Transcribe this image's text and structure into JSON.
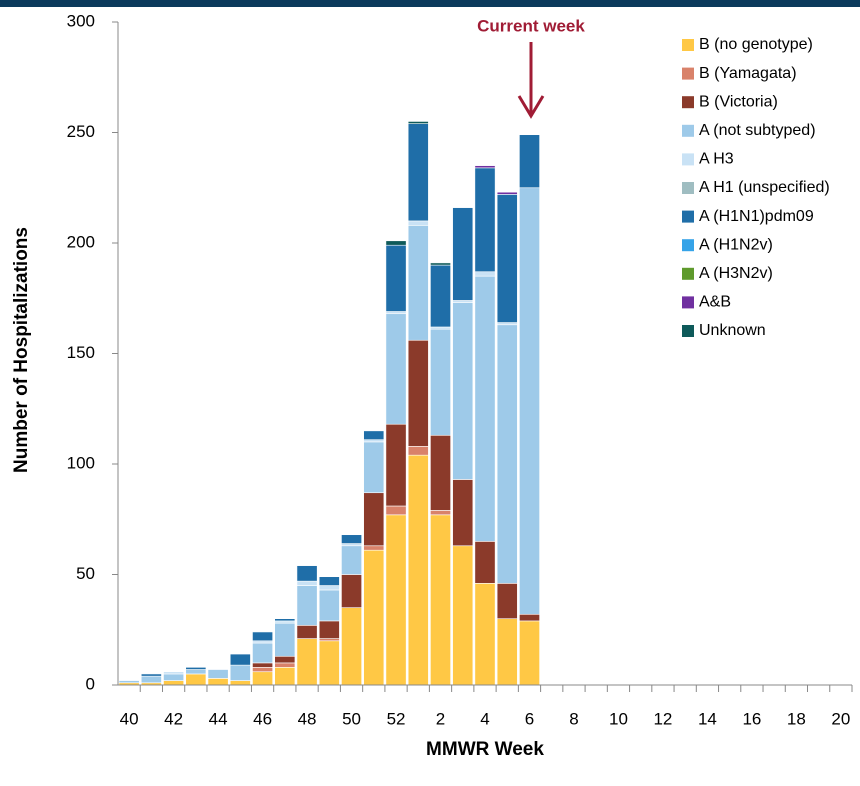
{
  "chart_data": {
    "type": "stacked_bar",
    "x_label": "MMWR Week",
    "y_label": "Number of Hospitalizations",
    "annotation": "Current week",
    "categories": [
      40,
      null,
      42,
      null,
      44,
      null,
      46,
      null,
      48,
      null,
      50,
      null,
      52,
      null,
      2,
      null,
      4,
      null,
      6,
      null,
      8,
      null,
      10,
      null,
      12,
      null,
      14,
      null,
      16,
      null,
      18,
      null,
      20
    ],
    "ylim": [
      0,
      300
    ],
    "yticks": [
      0,
      50,
      100,
      150,
      200,
      250,
      300
    ],
    "series": [
      {
        "name": "B (no genotype)",
        "color": "#ffc845",
        "values": [
          1,
          1,
          2,
          5,
          3,
          2,
          6,
          8,
          21,
          20,
          35,
          61,
          77,
          104,
          77,
          63,
          46,
          30,
          29,
          null,
          null,
          null,
          null,
          null,
          null,
          null,
          null,
          null,
          null,
          null,
          null,
          null,
          null
        ]
      },
      {
        "name": "B (Yamagata)",
        "color": "#d9826a",
        "values": [
          0,
          0,
          0,
          0,
          0,
          0,
          2,
          2,
          0,
          1,
          0,
          2,
          4,
          4,
          2,
          0,
          0,
          0,
          0,
          null,
          null,
          null,
          null,
          null,
          null,
          null,
          null,
          null,
          null,
          null,
          null,
          null,
          null
        ]
      },
      {
        "name": "B (Victoria)",
        "color": "#8b3a2a",
        "values": [
          0,
          0,
          0,
          0,
          0,
          0,
          2,
          3,
          6,
          8,
          15,
          24,
          37,
          48,
          34,
          30,
          19,
          16,
          3,
          null,
          null,
          null,
          null,
          null,
          null,
          null,
          null,
          null,
          null,
          null,
          null,
          null,
          null
        ]
      },
      {
        "name": "A (not subtyped)",
        "color": "#9ecae9",
        "values": [
          1,
          3,
          3,
          2,
          4,
          7,
          9,
          15,
          18,
          14,
          13,
          23,
          50,
          52,
          48,
          80,
          120,
          117,
          193,
          null,
          null,
          null,
          null,
          null,
          null,
          null,
          null,
          null,
          null,
          null,
          null,
          null,
          null
        ]
      },
      {
        "name": "A H3",
        "color": "#c9e2f5",
        "values": [
          0,
          0,
          1,
          0,
          0,
          0,
          1,
          1,
          2,
          2,
          1,
          1,
          1,
          2,
          1,
          1,
          2,
          1,
          0,
          null,
          null,
          null,
          null,
          null,
          null,
          null,
          null,
          null,
          null,
          null,
          null,
          null,
          null
        ]
      },
      {
        "name": "A H1 (unspecified)",
        "color": "#9fbdc1",
        "values": [
          0,
          0,
          0,
          0,
          0,
          0,
          0,
          0,
          0,
          0,
          0,
          0,
          0,
          0,
          0,
          0,
          0,
          0,
          0,
          null,
          null,
          null,
          null,
          null,
          null,
          null,
          null,
          null,
          null,
          null,
          null,
          null,
          null
        ]
      },
      {
        "name": "A (H1N1)pdm09",
        "color": "#1f6ea8",
        "values": [
          0,
          1,
          0,
          1,
          0,
          5,
          4,
          1,
          7,
          4,
          4,
          4,
          30,
          44,
          28,
          42,
          47,
          58,
          24,
          null,
          null,
          null,
          null,
          null,
          null,
          null,
          null,
          null,
          null,
          null,
          null,
          null,
          null
        ]
      },
      {
        "name": "A (H1N2v)",
        "color": "#35a3e8",
        "values": [
          0,
          0,
          0,
          0,
          0,
          0,
          0,
          0,
          0,
          0,
          0,
          0,
          0,
          0,
          0,
          0,
          0,
          0,
          0,
          null,
          null,
          null,
          null,
          null,
          null,
          null,
          null,
          null,
          null,
          null,
          null,
          null,
          null
        ]
      },
      {
        "name": "A (H3N2v)",
        "color": "#5e9a2c",
        "values": [
          0,
          0,
          0,
          0,
          0,
          0,
          0,
          0,
          0,
          0,
          0,
          0,
          0,
          0,
          0,
          0,
          0,
          0,
          0,
          null,
          null,
          null,
          null,
          null,
          null,
          null,
          null,
          null,
          null,
          null,
          null,
          null,
          null
        ]
      },
      {
        "name": "A&B",
        "color": "#7030a0",
        "values": [
          0,
          0,
          0,
          0,
          0,
          0,
          0,
          0,
          0,
          0,
          0,
          0,
          0,
          0,
          0,
          0,
          1,
          1,
          0,
          null,
          null,
          null,
          null,
          null,
          null,
          null,
          null,
          null,
          null,
          null,
          null,
          null,
          null
        ]
      },
      {
        "name": "Unknown",
        "color": "#0e5a5a",
        "values": [
          0,
          0,
          0,
          0,
          0,
          0,
          0,
          0,
          0,
          0,
          0,
          0,
          2,
          1,
          1,
          0,
          0,
          0,
          0,
          null,
          null,
          null,
          null,
          null,
          null,
          null,
          null,
          null,
          null,
          null,
          null,
          null,
          null
        ]
      }
    ]
  }
}
